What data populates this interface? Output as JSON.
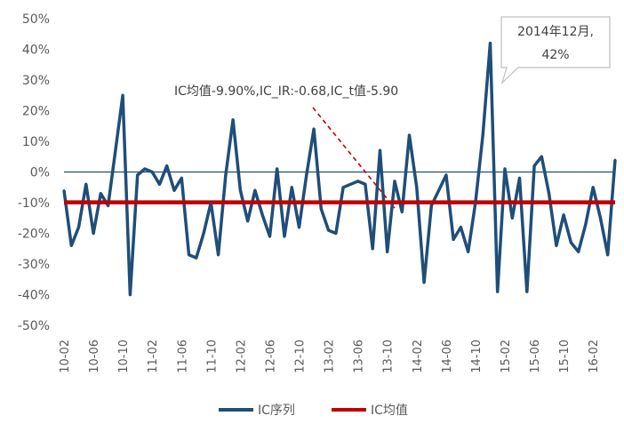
{
  "chart_data": {
    "type": "line",
    "ylim": [
      -0.5,
      0.5
    ],
    "ytick_labels": [
      "50%",
      "40%",
      "30%",
      "20%",
      "10%",
      "0%",
      "-10%",
      "-20%",
      "-30%",
      "-40%",
      "-50%"
    ],
    "ytick_values": [
      0.5,
      0.4,
      0.3,
      0.2,
      0.1,
      0.0,
      -0.1,
      -0.2,
      -0.3,
      -0.4,
      -0.5
    ],
    "xtick_labels": [
      "10-02",
      "10-06",
      "10-10",
      "11-02",
      "11-06",
      "11-10",
      "12-02",
      "12-06",
      "12-10",
      "13-02",
      "13-06",
      "13-10",
      "14-02",
      "14-06",
      "14-10",
      "15-02",
      "15-06",
      "15-10",
      "16-02"
    ],
    "x_start": "2010-02",
    "series": [
      {
        "name": "IC序列",
        "color": "#1F4E79",
        "values": [
          -0.06,
          -0.24,
          -0.18,
          -0.04,
          -0.2,
          -0.07,
          -0.11,
          0.07,
          0.25,
          -0.4,
          -0.01,
          0.01,
          0.0,
          -0.04,
          0.02,
          -0.06,
          -0.02,
          -0.27,
          -0.28,
          -0.2,
          -0.1,
          -0.27,
          -0.01,
          0.17,
          -0.06,
          -0.16,
          -0.06,
          -0.14,
          -0.21,
          0.01,
          -0.21,
          -0.05,
          -0.18,
          -0.01,
          0.14,
          -0.12,
          -0.19,
          -0.2,
          -0.05,
          -0.04,
          -0.03,
          -0.04,
          -0.25,
          0.07,
          -0.26,
          -0.03,
          -0.13,
          0.12,
          -0.05,
          -0.36,
          -0.11,
          -0.06,
          -0.01,
          -0.22,
          -0.18,
          -0.26,
          -0.1,
          0.12,
          0.42,
          -0.39,
          0.01,
          -0.15,
          -0.02,
          -0.39,
          0.02,
          0.05,
          -0.07,
          -0.24,
          -0.14,
          -0.23,
          -0.26,
          -0.17,
          -0.05,
          -0.15,
          -0.27,
          0.04
        ]
      },
      {
        "name": "IC均值",
        "color": "#C00000",
        "value": -0.099
      }
    ],
    "annotations": [
      {
        "text": "IC均值-9.90%,IC_IR:-0.68,IC_t值-5.90"
      },
      {
        "callout_line1": "2014年12月,",
        "callout_line2": "42%"
      }
    ],
    "legend": {
      "placement": "bottom",
      "entries": [
        "IC序列",
        "IC均值"
      ]
    },
    "grid": false
  }
}
